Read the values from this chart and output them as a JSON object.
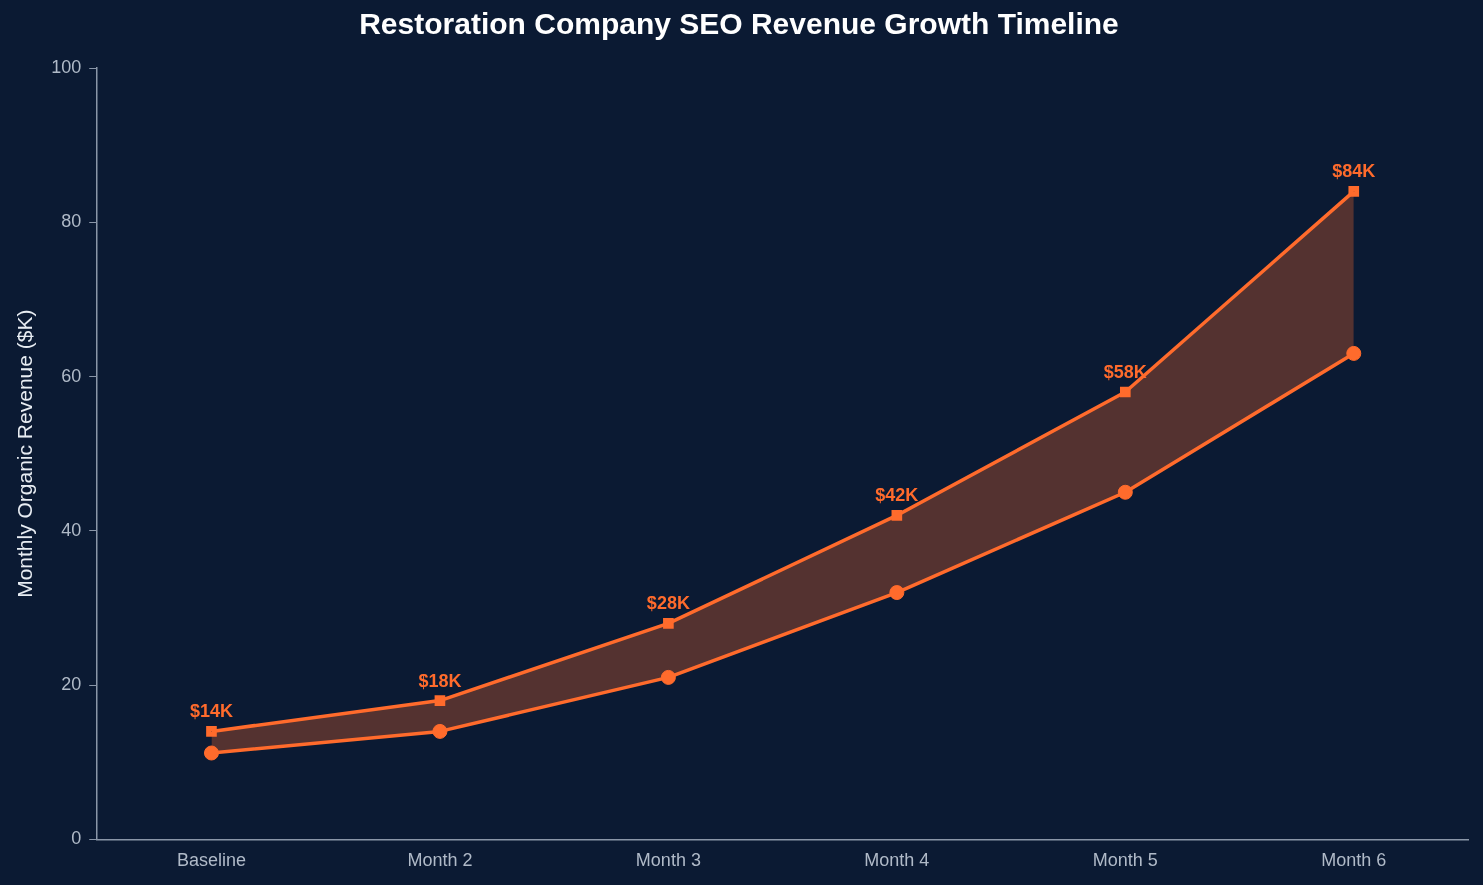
{
  "chart_data": {
    "type": "line",
    "title": "Restoration Company SEO Revenue Growth Timeline",
    "ylabel": "Monthly Organic Revenue ($K)",
    "categories": [
      "Baseline",
      "Month 2",
      "Month 3",
      "Month 4",
      "Month 5",
      "Month 6"
    ],
    "series": [
      {
        "color": "#ff6b2c",
        "marker": "circle",
        "values": [
          11.2,
          14,
          21,
          32,
          45,
          63
        ],
        "lower": [
          11.2,
          14,
          21,
          32,
          45,
          63
        ],
        "upper": [
          14,
          18,
          28,
          42,
          58,
          84
        ]
      },
      {
        "color": "#ff6b2c",
        "marker": "square",
        "values": [
          14,
          18,
          28,
          42,
          58,
          84
        ],
        "value_labels": [
          "$14K",
          "$18K",
          "$28K",
          "$42K",
          "$58K",
          "$84K"
        ]
      }
    ],
    "ylim": [
      0,
      100
    ],
    "yticks": [
      0,
      20,
      40,
      60,
      80,
      100
    ],
    "grid": false,
    "legend": false,
    "line_style": "solid"
  }
}
